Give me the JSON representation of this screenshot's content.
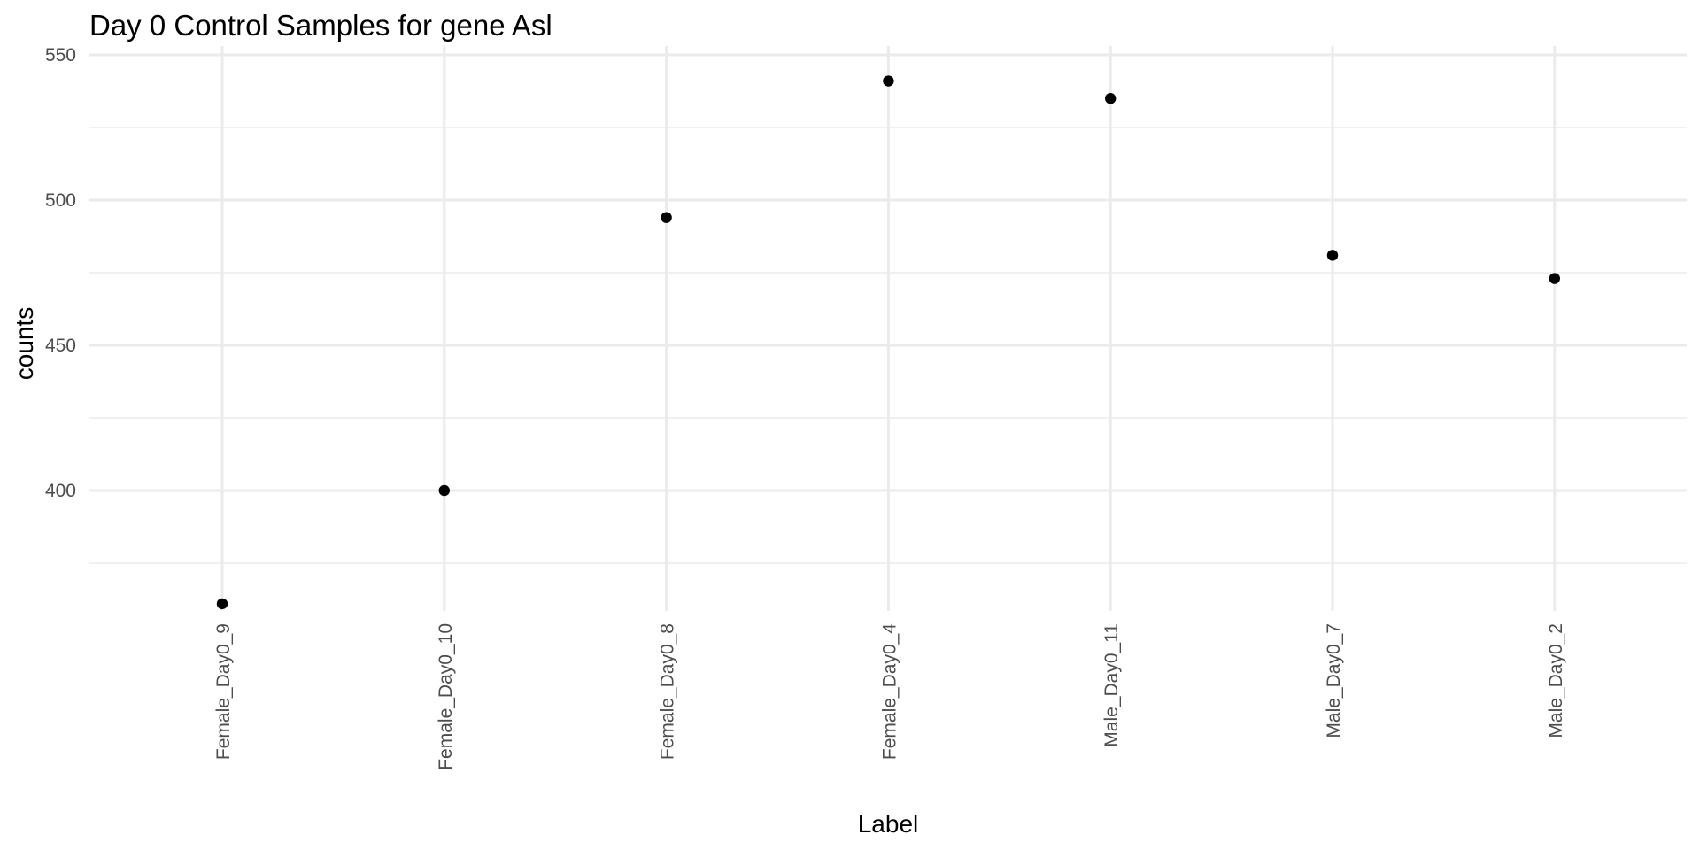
{
  "chart_data": {
    "type": "scatter",
    "title": "Day 0 Control Samples for gene Asl",
    "xlabel": "Label",
    "ylabel": "counts",
    "categories": [
      "Female_Day0_9",
      "Female_Day0_10",
      "Female_Day0_8",
      "Female_Day0_4",
      "Male_Day0_11",
      "Male_Day0_7",
      "Male_Day0_2"
    ],
    "series": [
      {
        "values": [
          361,
          400,
          494,
          541,
          535,
          481,
          473
        ]
      }
    ],
    "y_ticks": [
      400,
      450,
      500,
      550
    ],
    "ylim": [
      353,
      550
    ],
    "grid": true,
    "legend": "none",
    "colors": {
      "point": "#000000",
      "grid": "#ebebeb",
      "background": "#ffffff"
    }
  }
}
